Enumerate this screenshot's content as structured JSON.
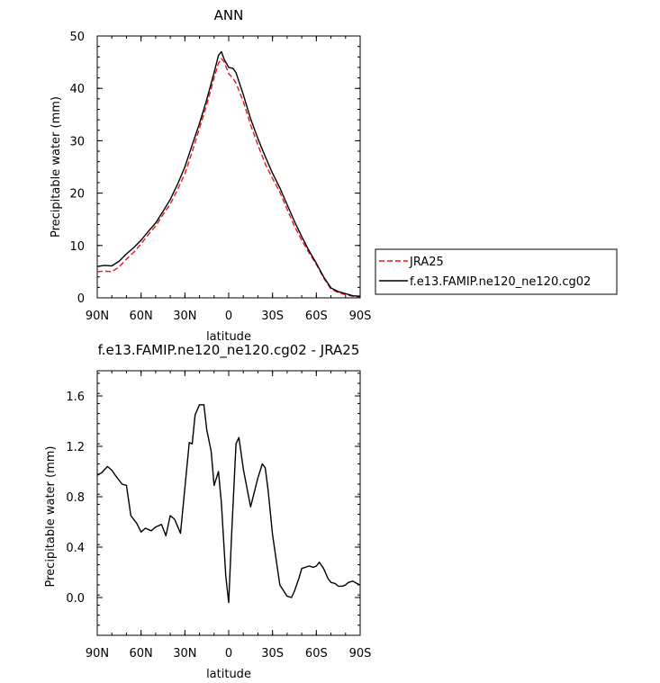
{
  "chart_data": [
    {
      "type": "line",
      "title": "ANN",
      "xlabel": "latitude",
      "ylabel": "Precipitable water (mm)",
      "x_ticklabels": [
        "90N",
        "60N",
        "30N",
        "0",
        "30S",
        "60S",
        "90S"
      ],
      "x_tickvalues": [
        90,
        60,
        30,
        0,
        -30,
        -60,
        -90
      ],
      "xlim": [
        90,
        -90
      ],
      "ylim": [
        0,
        50
      ],
      "y_ticks": [
        0,
        10,
        20,
        30,
        40,
        50
      ],
      "y_ticklabels": [
        "0",
        "10",
        "20",
        "30",
        "40",
        "50"
      ],
      "legend_position": "outside-right",
      "grid": false,
      "x": [
        90,
        85,
        80,
        75,
        70,
        65,
        60,
        55,
        50,
        45,
        40,
        35,
        30,
        25,
        20,
        15,
        10,
        7,
        5,
        3,
        0,
        -3,
        -5,
        -10,
        -15,
        -20,
        -25,
        -30,
        -35,
        -40,
        -45,
        -50,
        -55,
        -60,
        -65,
        -70,
        -75,
        -80,
        -85,
        -90
      ],
      "series": [
        {
          "name": "JRA25",
          "color": "#e8141c",
          "dash": "dashed",
          "values": [
            5.0,
            5.1,
            5.0,
            5.9,
            7.4,
            8.7,
            10.3,
            12.1,
            13.7,
            15.9,
            17.9,
            20.7,
            23.7,
            27.9,
            32.4,
            36.9,
            42.0,
            44.8,
            45.7,
            45.0,
            42.8,
            41.9,
            41.0,
            37.5,
            33.0,
            29.2,
            25.6,
            22.8,
            20.2,
            16.9,
            13.7,
            11.0,
            8.6,
            6.4,
            3.8,
            1.7,
            1.0,
            0.6,
            0.3,
            0.2
          ]
        },
        {
          "name": "f.e13.FAMIP.ne120_ne120.cg02",
          "color": "#000000",
          "dash": "solid",
          "values": [
            6.0,
            6.2,
            6.1,
            7.0,
            8.4,
            9.6,
            11.0,
            12.7,
            14.3,
            16.5,
            18.8,
            21.7,
            25.0,
            29.2,
            33.3,
            37.9,
            43.0,
            46.3,
            47.0,
            45.5,
            44.0,
            43.8,
            43.0,
            38.8,
            34.2,
            30.4,
            27.0,
            23.8,
            21.0,
            17.8,
            14.6,
            11.7,
            9.0,
            6.6,
            4.0,
            1.9,
            1.2,
            0.8,
            0.4,
            0.3
          ]
        }
      ]
    },
    {
      "type": "line",
      "title": "f.e13.FAMIP.ne120_ne120.cg02 - JRA25",
      "xlabel": "latitude",
      "ylabel": "Precipitable water (mm)",
      "x_ticklabels": [
        "90N",
        "60N",
        "30N",
        "0",
        "30S",
        "60S",
        "90S"
      ],
      "x_tickvalues": [
        90,
        60,
        30,
        0,
        -30,
        -60,
        -90
      ],
      "xlim": [
        90,
        -90
      ],
      "ylim": [
        -0.3,
        1.8
      ],
      "y_ticks": [
        0.0,
        0.4,
        0.8,
        1.2,
        1.6
      ],
      "y_ticklabels": [
        "0.0",
        "0.4",
        "0.8",
        "1.2",
        "1.6"
      ],
      "grid": false,
      "x": [
        90,
        87,
        83,
        80,
        77,
        73,
        70,
        67,
        63,
        60,
        57,
        53,
        50,
        46,
        43,
        40,
        37,
        33,
        30,
        27,
        25,
        23,
        20,
        17,
        15,
        12,
        10,
        7,
        5,
        2,
        0,
        -2,
        -5,
        -7,
        -10,
        -15,
        -20,
        -23,
        -25,
        -27,
        -30,
        -35,
        -40,
        -43,
        -45,
        -48,
        -50,
        -55,
        -58,
        -60,
        -62,
        -65,
        -68,
        -70,
        -73,
        -75,
        -78,
        -80,
        -82,
        -85,
        -88,
        -90
      ],
      "series": [
        {
          "name": "",
          "color": "#000000",
          "values": [
            0.97,
            0.99,
            1.04,
            1.01,
            0.96,
            0.9,
            0.89,
            0.65,
            0.59,
            0.52,
            0.55,
            0.53,
            0.56,
            0.58,
            0.49,
            0.65,
            0.62,
            0.51,
            0.87,
            1.23,
            1.22,
            1.45,
            1.53,
            1.53,
            1.33,
            1.16,
            0.89,
            1.0,
            0.75,
            0.17,
            -0.04,
            0.5,
            1.22,
            1.27,
            1.02,
            0.72,
            0.95,
            1.06,
            1.03,
            0.85,
            0.5,
            0.1,
            0.01,
            0.0,
            0.05,
            0.15,
            0.23,
            0.25,
            0.24,
            0.25,
            0.28,
            0.23,
            0.15,
            0.12,
            0.11,
            0.09,
            0.09,
            0.1,
            0.12,
            0.13,
            0.11,
            0.1
          ]
        }
      ]
    }
  ]
}
